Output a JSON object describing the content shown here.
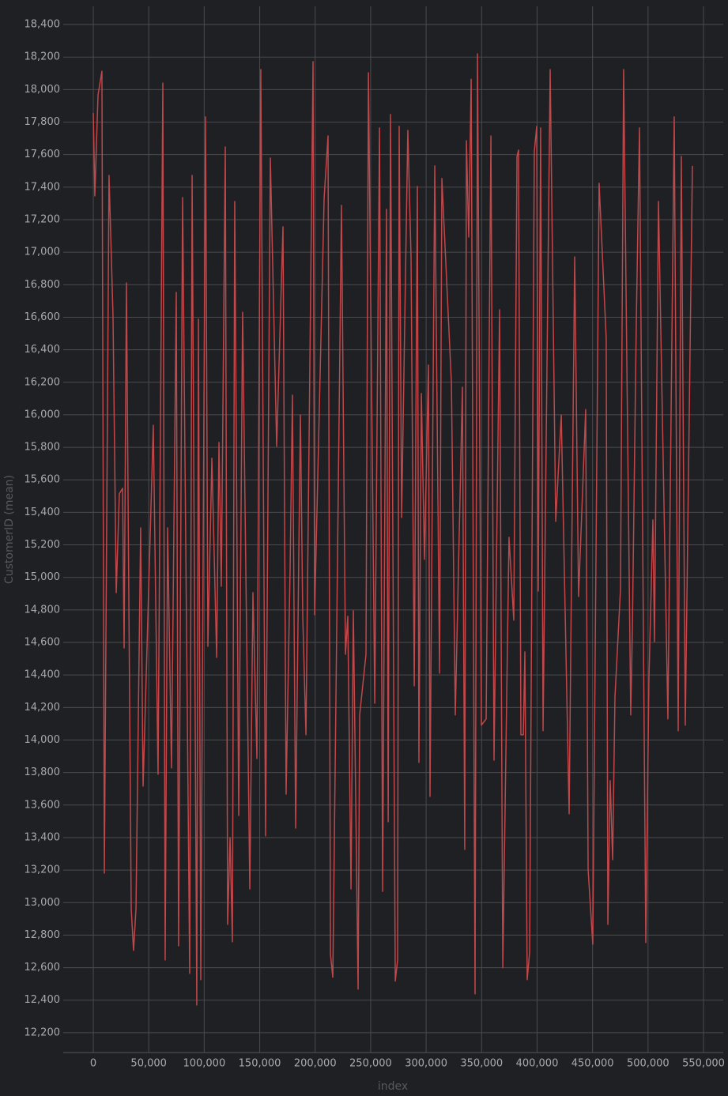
{
  "chart_data": {
    "type": "line",
    "x_label": "index",
    "y_label": "CustomerID (mean)",
    "color": "#c0474a",
    "grid": true,
    "xlim": [
      -27070,
      567800
    ],
    "ylim": [
      12078,
      18512
    ],
    "xticks": [
      0,
      {
        "value": 50000,
        "label": "50,000"
      },
      {
        "value": 100000,
        "label": "100,000"
      },
      {
        "value": 150000,
        "label": "150,000"
      },
      {
        "value": 200000,
        "label": "200,000"
      },
      {
        "value": 250000,
        "label": "250,000"
      },
      {
        "value": 300000,
        "label": "300,000"
      },
      {
        "value": 350000,
        "label": "350,000"
      },
      {
        "value": 400000,
        "label": "400,000"
      },
      {
        "value": 450000,
        "label": "450,000"
      },
      {
        "value": 500000,
        "label": "500,000"
      },
      {
        "value": 550000,
        "label": "550,000"
      }
    ],
    "yticks": [
      {
        "value": 12200,
        "label": "12,200"
      },
      {
        "value": 12400,
        "label": "12,400"
      },
      {
        "value": 12600,
        "label": "12,600"
      },
      {
        "value": 12800,
        "label": "12,800"
      },
      {
        "value": 13000,
        "label": "13,000"
      },
      {
        "value": 13200,
        "label": "13,200"
      },
      {
        "value": 13400,
        "label": "13,400"
      },
      {
        "value": 13600,
        "label": "13,600"
      },
      {
        "value": 13800,
        "label": "13,800"
      },
      {
        "value": 14000,
        "label": "14,000"
      },
      {
        "value": 14200,
        "label": "14,200"
      },
      {
        "value": 14400,
        "label": "14,400"
      },
      {
        "value": 14600,
        "label": "14,600"
      },
      {
        "value": 14800,
        "label": "14,800"
      },
      {
        "value": 15000,
        "label": "15,000"
      },
      {
        "value": 15200,
        "label": "15,200"
      },
      {
        "value": 15400,
        "label": "15,400"
      },
      {
        "value": 15600,
        "label": "15,600"
      },
      {
        "value": 15800,
        "label": "15,800"
      },
      {
        "value": 16000,
        "label": "16,000"
      },
      {
        "value": 16200,
        "label": "16,200"
      },
      {
        "value": 16400,
        "label": "16,400"
      },
      {
        "value": 16600,
        "label": "16,600"
      },
      {
        "value": 16800,
        "label": "16,800"
      },
      {
        "value": 17000,
        "label": "17,000"
      },
      {
        "value": 17200,
        "label": "17,200"
      },
      {
        "value": 17400,
        "label": "17,400"
      },
      {
        "value": 17600,
        "label": "17,600"
      },
      {
        "value": 17800,
        "label": "17,800"
      },
      {
        "value": 18000,
        "label": "18,000"
      },
      {
        "value": 18200,
        "label": "18,200"
      },
      {
        "value": 18400,
        "label": "18,400"
      }
    ],
    "x": [
      0,
      1400,
      4300,
      7800,
      10000,
      14200,
      17800,
      20700,
      23500,
      26400,
      27800,
      29900,
      34200,
      36300,
      38500,
      42700,
      44900,
      54100,
      58400,
      62700,
      64800,
      67000,
      70500,
      74800,
      76900,
      80500,
      86900,
      89100,
      93300,
      94800,
      96900,
      101200,
      103300,
      106900,
      111200,
      113300,
      115400,
      119000,
      121100,
      123300,
      125400,
      127500,
      131100,
      134600,
      141100,
      143900,
      147500,
      151000,
      155300,
      159600,
      165300,
      171000,
      173800,
      177400,
      179500,
      182400,
      186700,
      188800,
      191700,
      198100,
      199500,
      208100,
      211600,
      213800,
      215900,
      223700,
      227300,
      229400,
      232300,
      234400,
      238700,
      240100,
      245800,
      248000,
      253700,
      258000,
      260800,
      264300,
      265800,
      267900,
      272200,
      274300,
      275700,
      277900,
      283500,
      286400,
      289300,
      292100,
      293500,
      295700,
      298500,
      302100,
      303500,
      307800,
      312100,
      314200,
      322800,
      326300,
      332700,
      334800,
      336300,
      338400,
      340600,
      344100,
      346300,
      349800,
      354100,
      358400,
      361200,
      366200,
      369100,
      374700,
      379000,
      381900,
      383300,
      385400,
      387600,
      389000,
      391100,
      393300,
      397500,
      399700,
      401100,
      403200,
      405400,
      411800,
      416800,
      421800,
      428900,
      433900,
      437400,
      443800,
      446000,
      450200,
      455900,
      462300,
      463800,
      465900,
      468100,
      470200,
      475200,
      478000,
      484400,
      485900,
      489400,
      492300,
      494400,
      498000,
      500800,
      504400,
      505800,
      509400,
      517900,
      523600,
      527200,
      530000,
      533600,
      540000
    ],
    "values": [
      17856,
      17346,
      17968,
      18113,
      13181,
      17472,
      16607,
      14906,
      15514,
      15548,
      14566,
      16811,
      12963,
      12706,
      12963,
      15305,
      13716,
      15936,
      13789,
      18040,
      12647,
      15305,
      13828,
      16753,
      12734,
      17336,
      12565,
      17472,
      12370,
      16588,
      12526,
      17832,
      14576,
      15733,
      14508,
      15830,
      14945,
      17647,
      12866,
      13400,
      12759,
      17312,
      13536,
      16631,
      13084,
      14906,
      13886,
      18123,
      13410,
      17579,
      15806,
      17156,
      13667,
      15052,
      16121,
      13458,
      15999,
      14761,
      14032,
      18172,
      14770,
      17336,
      17715,
      12681,
      12541,
      17288,
      14527,
      14761,
      13084,
      14795,
      12468,
      14154,
      14527,
      18103,
      14226,
      17764,
      13069,
      17264,
      13497,
      17847,
      12517,
      12647,
      17774,
      15368,
      17749,
      16971,
      14333,
      17404,
      13862,
      16131,
      15111,
      16306,
      13653,
      17531,
      14411,
      17453,
      16194,
      14154,
      16170,
      13327,
      17686,
      17093,
      18064,
      12439,
      18220,
      14091,
      14130,
      17715,
      13876,
      16646,
      12599,
      15247,
      14737,
      17589,
      17628,
      14032,
      14032,
      14542,
      12526,
      12696,
      17618,
      17774,
      14916,
      17764,
      14057,
      18123,
      15344,
      15999,
      13546,
      16971,
      14882,
      16033,
      13206,
      12744,
      17424,
      16471,
      12866,
      13750,
      13264,
      14265,
      14930,
      18123,
      14154,
      14688,
      16558,
      17764,
      15903,
      12754,
      14372,
      15354,
      14605,
      17312,
      14130,
      17832,
      14057,
      17589,
      14091,
      17531
    ]
  }
}
